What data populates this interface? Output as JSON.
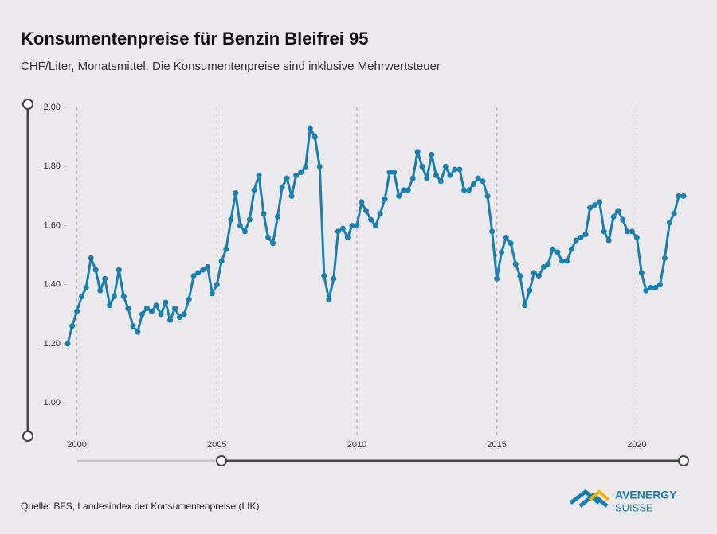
{
  "chart_data": {
    "type": "line",
    "title": "Konsumentenpreise für Benzin Bleifrei 95",
    "subtitle": "CHF/Liter, Monatsmittel. Die Konsumentenpreise sind inklusive Mehrwertsteuer",
    "source": "Quelle: BFS, Landesindex der Konsumentenpreise (LIK)",
    "logo": [
      "AVENERGY",
      "SUISSE"
    ],
    "x": [
      1999.67,
      1999.83,
      2000.0,
      2000.17,
      2000.33,
      2000.5,
      2000.67,
      2000.83,
      2001.0,
      2001.17,
      2001.33,
      2001.5,
      2001.67,
      2001.83,
      2002.0,
      2002.17,
      2002.33,
      2002.5,
      2002.67,
      2002.83,
      2003.0,
      2003.17,
      2003.33,
      2003.5,
      2003.67,
      2003.83,
      2004.0,
      2004.17,
      2004.33,
      2004.5,
      2004.67,
      2004.83,
      2005.0,
      2005.17,
      2005.33,
      2005.5,
      2005.67,
      2005.83,
      2006.0,
      2006.17,
      2006.33,
      2006.5,
      2006.67,
      2006.83,
      2007.0,
      2007.17,
      2007.33,
      2007.5,
      2007.67,
      2007.83,
      2008.0,
      2008.17,
      2008.33,
      2008.5,
      2008.67,
      2008.83,
      2009.0,
      2009.17,
      2009.33,
      2009.5,
      2009.67,
      2009.83,
      2010.0,
      2010.17,
      2010.33,
      2010.5,
      2010.67,
      2010.83,
      2011.0,
      2011.17,
      2011.33,
      2011.5,
      2011.67,
      2011.83,
      2012.0,
      2012.17,
      2012.33,
      2012.5,
      2012.67,
      2012.83,
      2013.0,
      2013.17,
      2013.33,
      2013.5,
      2013.67,
      2013.83,
      2014.0,
      2014.17,
      2014.33,
      2014.5,
      2014.67,
      2014.83,
      2015.0,
      2015.17,
      2015.33,
      2015.5,
      2015.67,
      2015.83,
      2016.0,
      2016.17,
      2016.33,
      2016.5,
      2016.67,
      2016.83,
      2017.0,
      2017.17,
      2017.33,
      2017.5,
      2017.67,
      2017.83,
      2018.0,
      2018.17,
      2018.33,
      2018.5,
      2018.67,
      2018.83,
      2019.0,
      2019.17,
      2019.33,
      2019.5,
      2019.67,
      2019.83,
      2020.0,
      2020.17,
      2020.33,
      2020.5,
      2020.67,
      2020.83,
      2021.0,
      2021.17,
      2021.33,
      2021.5,
      2021.67
    ],
    "series": [
      {
        "color": "#1a7fae",
        "values": [
          1.2,
          1.26,
          1.31,
          1.36,
          1.39,
          1.49,
          1.45,
          1.38,
          1.42,
          1.33,
          1.36,
          1.45,
          1.36,
          1.32,
          1.26,
          1.24,
          1.3,
          1.32,
          1.31,
          1.33,
          1.3,
          1.34,
          1.28,
          1.32,
          1.29,
          1.3,
          1.35,
          1.43,
          1.44,
          1.45,
          1.46,
          1.37,
          1.4,
          1.48,
          1.52,
          1.62,
          1.71,
          1.6,
          1.58,
          1.62,
          1.72,
          1.77,
          1.64,
          1.56,
          1.54,
          1.63,
          1.73,
          1.76,
          1.7,
          1.77,
          1.78,
          1.8,
          1.93,
          1.9,
          1.8,
          1.43,
          1.35,
          1.42,
          1.58,
          1.59,
          1.56,
          1.6,
          1.6,
          1.68,
          1.65,
          1.62,
          1.6,
          1.64,
          1.69,
          1.78,
          1.78,
          1.7,
          1.72,
          1.72,
          1.76,
          1.85,
          1.8,
          1.76,
          1.84,
          1.77,
          1.75,
          1.8,
          1.77,
          1.79,
          1.79,
          1.72,
          1.72,
          1.74,
          1.76,
          1.75,
          1.7,
          1.58,
          1.42,
          1.51,
          1.56,
          1.54,
          1.47,
          1.43,
          1.33,
          1.38,
          1.44,
          1.43,
          1.46,
          1.47,
          1.52,
          1.51,
          1.48,
          1.48,
          1.52,
          1.55,
          1.56,
          1.57,
          1.66,
          1.67,
          1.68,
          1.58,
          1.55,
          1.63,
          1.65,
          1.62,
          1.58,
          1.58,
          1.56,
          1.44,
          1.38,
          1.39,
          1.39,
          1.4,
          1.49,
          1.61,
          1.64,
          1.7,
          1.7
        ]
      }
    ],
    "xlim": [
      1999.67,
      2021.67
    ],
    "xticks": [
      2000,
      2005,
      2010,
      2015,
      2020
    ],
    "ylim": [
      0.89,
      2.0
    ],
    "yticks": [
      {
        "value": 1,
        "label": "1.00"
      },
      {
        "value": 1.2,
        "label": "1.20"
      },
      {
        "value": 1.4,
        "label": "1.40"
      },
      {
        "value": 1.6,
        "label": "1.60"
      },
      {
        "value": 1.8,
        "label": "1.80"
      },
      {
        "value": 2,
        "label": "2.00"
      }
    ],
    "grid": "x"
  }
}
